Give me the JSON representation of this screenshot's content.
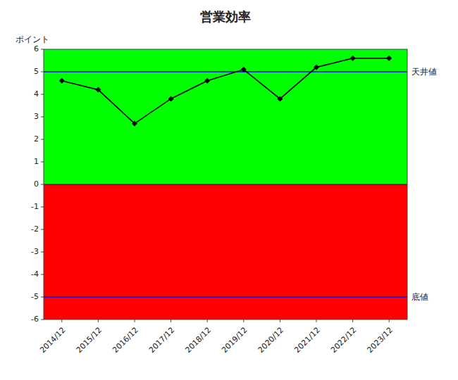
{
  "chart_data": {
    "type": "line",
    "title": "営業効率",
    "y_label": "ポイント",
    "categories": [
      "2014/12",
      "2015/12",
      "2016/12",
      "2017/12",
      "2018/12",
      "2019/12",
      "2020/12",
      "2021/12",
      "2022/12",
      "2023/12"
    ],
    "values": [
      4.6,
      4.2,
      2.7,
      3.8,
      4.6,
      5.1,
      3.8,
      5.2,
      5.6,
      5.6
    ],
    "color": "#000000",
    "marker": "diamond",
    "ylim": [
      -6,
      6
    ],
    "yticks": [
      -6,
      -5,
      -4,
      -3,
      -2,
      -1,
      0,
      1,
      2,
      3,
      4,
      5,
      6
    ],
    "grid": false,
    "bands": [
      {
        "y0": 0,
        "y1": 6,
        "color": "#00ff00"
      },
      {
        "y0": -6,
        "y1": 0,
        "color": "#ff0000"
      }
    ],
    "annotations": [
      {
        "label": "天井値",
        "y": 5.0,
        "color": "#0000ff"
      },
      {
        "label": "底値",
        "y": -5.0,
        "color": "#0000ff"
      }
    ]
  }
}
